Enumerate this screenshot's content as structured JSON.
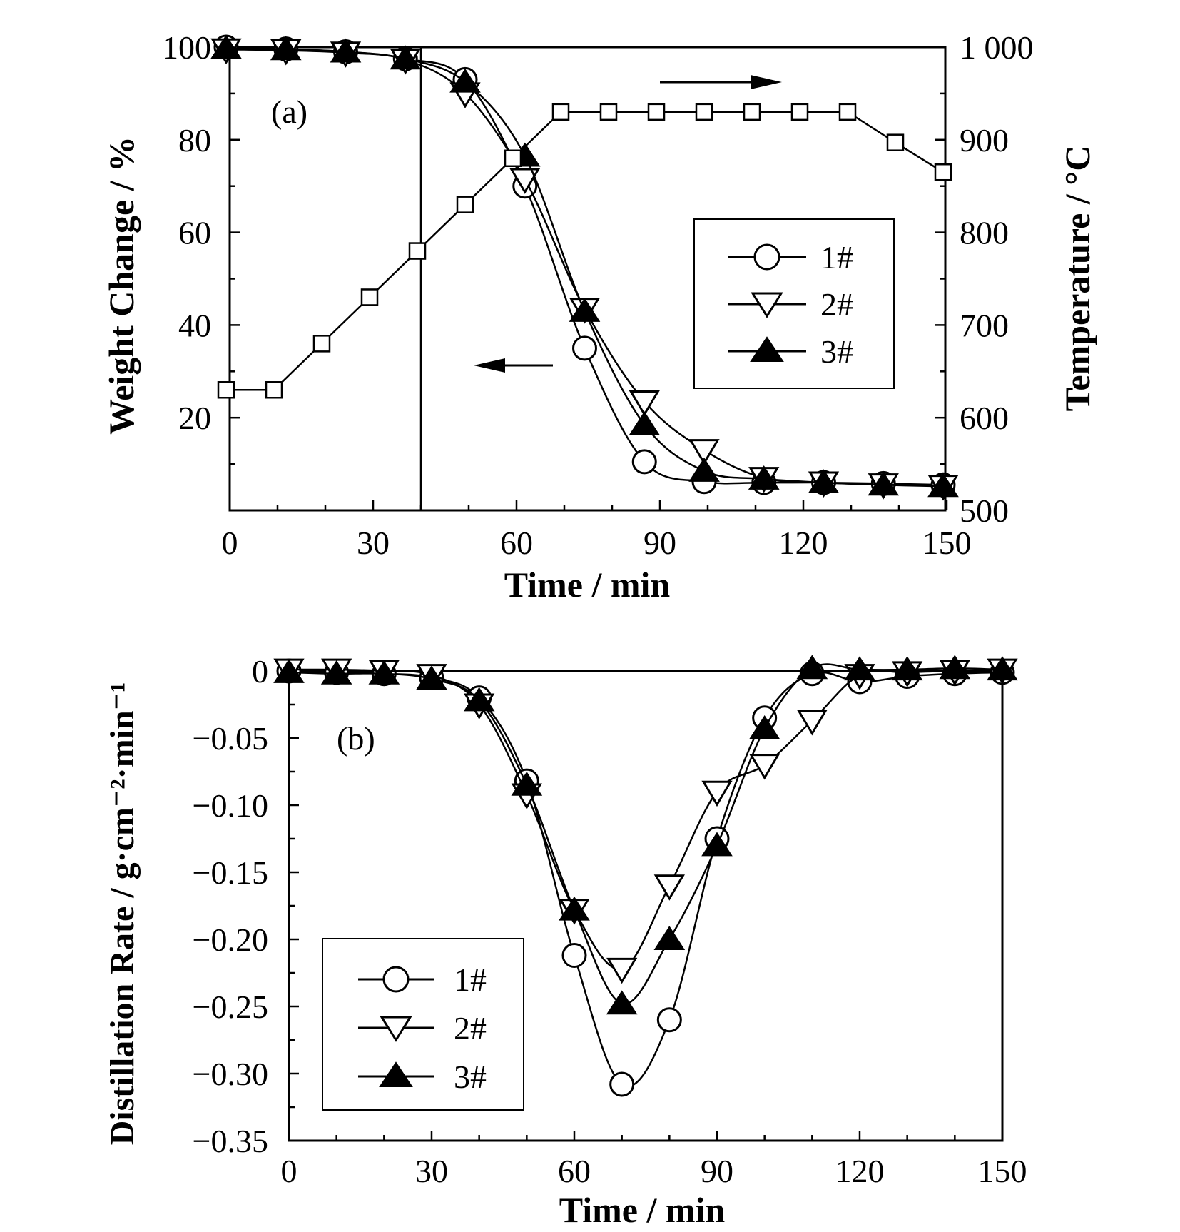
{
  "chart_data": [
    {
      "type": "line",
      "panel_label": "(a)",
      "xlabel": "Time / min",
      "ylabel": "Weight Change / %",
      "y2label": "Temperature / °C",
      "xlim": [
        0,
        150
      ],
      "ylim": [
        0,
        100
      ],
      "y2lim": [
        500,
        1000
      ],
      "xticks": [
        "0",
        "30",
        "60",
        "90",
        "120",
        "150"
      ],
      "yticks": [
        "20",
        "40",
        "60",
        "80",
        "100"
      ],
      "y2ticks": [
        "500",
        "600",
        "700",
        "800",
        "900",
        "1 000"
      ],
      "vline_x": 40,
      "arrow_left_hint": "points to left axis",
      "arrow_right_hint": "points to right axis",
      "legend": {
        "placement": "center-right",
        "entries": [
          "1#",
          "2#",
          "3#"
        ]
      },
      "series": [
        {
          "name": "1#",
          "marker": "circle",
          "x": [
            0,
            12.5,
            25,
            37.5,
            50,
            62.5,
            75,
            87.5,
            100,
            112.5,
            125,
            137.5,
            150
          ],
          "y": [
            100,
            99.6,
            99,
            97.5,
            93,
            70,
            35,
            10.5,
            6.2,
            6,
            6,
            5.8,
            5.5
          ]
        },
        {
          "name": "2#",
          "marker": "triangle-down",
          "x": [
            0,
            12.5,
            25,
            37.5,
            50,
            62.5,
            75,
            87.5,
            100,
            112.5,
            125,
            137.5,
            150
          ],
          "y": [
            99.5,
            99.3,
            98.8,
            97.3,
            90,
            71.5,
            43.5,
            23.5,
            13,
            7,
            6,
            5.6,
            5.3
          ]
        },
        {
          "name": "3#",
          "marker": "triangle-up-filled",
          "x": [
            0,
            12.5,
            25,
            37.5,
            50,
            62.5,
            75,
            87.5,
            100,
            112.5,
            125,
            137.5,
            150
          ],
          "y": [
            99.8,
            99.5,
            99,
            97.5,
            92.5,
            76.5,
            43,
            18.5,
            8.5,
            6.8,
            6,
            5.5,
            5.2
          ]
        },
        {
          "name": "Temperature",
          "marker": "square",
          "axis": "right",
          "x": [
            0,
            10,
            20,
            30,
            40,
            50,
            60,
            70,
            80,
            90,
            100,
            110,
            120,
            130,
            140,
            150
          ],
          "y": [
            630,
            630,
            680,
            730,
            780,
            830,
            880,
            930,
            930,
            930,
            930,
            930,
            930,
            930,
            897,
            865
          ]
        }
      ]
    },
    {
      "type": "line",
      "panel_label": "(b)",
      "xlabel": "Time / min",
      "ylabel": "Distillation Rate / g·cm⁻²·min⁻¹",
      "xlim": [
        0,
        150
      ],
      "ylim": [
        -0.35,
        0
      ],
      "xticks": [
        "0",
        "30",
        "60",
        "90",
        "120",
        "150"
      ],
      "yticks": [
        "0",
        "−0.05",
        "−0.10",
        "−0.15",
        "−0.20",
        "−0.25",
        "−0.30",
        "−0.35"
      ],
      "ytick_values": [
        0,
        -0.05,
        -0.1,
        -0.15,
        -0.2,
        -0.25,
        -0.3,
        -0.35
      ],
      "zero_line": true,
      "legend": {
        "placement": "bottom-left",
        "entries": [
          "1#",
          "2#",
          "3#"
        ]
      },
      "series": [
        {
          "name": "1#",
          "marker": "circle",
          "x": [
            0,
            10,
            20,
            30,
            40,
            50,
            60,
            70,
            80,
            90,
            100,
            110,
            120,
            130,
            140,
            150
          ],
          "y": [
            0,
            -0.001,
            -0.002,
            -0.005,
            -0.02,
            -0.082,
            -0.212,
            -0.308,
            -0.26,
            -0.125,
            -0.035,
            -0.002,
            -0.008,
            -0.004,
            -0.002,
            -0.001
          ]
        },
        {
          "name": "2#",
          "marker": "triangle-down",
          "x": [
            0,
            10,
            20,
            30,
            40,
            50,
            60,
            70,
            80,
            90,
            100,
            110,
            120,
            130,
            140,
            150
          ],
          "y": [
            0.001,
            0.001,
            0,
            -0.003,
            -0.025,
            -0.092,
            -0.178,
            -0.222,
            -0.16,
            -0.09,
            -0.07,
            -0.037,
            -0.003,
            -0.001,
            0,
            0.001
          ]
        },
        {
          "name": "3#",
          "marker": "triangle-up-filled",
          "x": [
            0,
            10,
            20,
            30,
            40,
            50,
            60,
            70,
            80,
            90,
            100,
            110,
            120,
            130,
            140,
            150
          ],
          "y": [
            -0.001,
            -0.002,
            -0.002,
            -0.006,
            -0.022,
            -0.085,
            -0.178,
            -0.248,
            -0.2,
            -0.13,
            -0.043,
            0.002,
            0.001,
            0.001,
            0.002,
            0.001
          ]
        }
      ]
    }
  ]
}
